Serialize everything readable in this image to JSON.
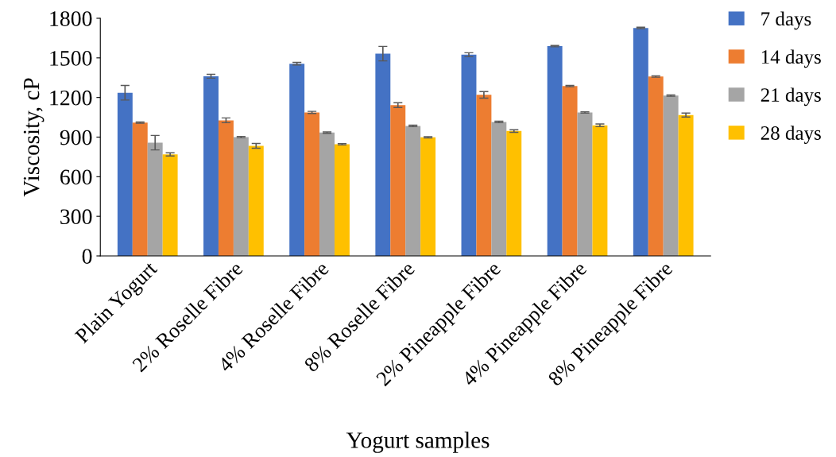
{
  "chart_data": {
    "type": "bar",
    "xlabel": "Yogurt samples",
    "ylabel": "Viscosity, cP",
    "categories": [
      "Plain Yogurt",
      "2% Roselle Fibre",
      "4% Roselle Fibre",
      "8% Roselle Fibre",
      "2% Pineapple Fibre",
      "4% Pineapple Fibre",
      "8% Pineapple Fibre"
    ],
    "series": [
      {
        "name": "7 days",
        "color": "#4472c4",
        "values": [
          1236,
          1361,
          1456,
          1532,
          1524,
          1589,
          1727
        ],
        "errors": [
          55,
          15,
          10,
          55,
          15,
          5,
          5
        ]
      },
      {
        "name": "14 days",
        "color": "#ed7d31",
        "values": [
          1010,
          1027,
          1087,
          1142,
          1220,
          1287,
          1359
        ],
        "errors": [
          5,
          18,
          8,
          18,
          25,
          5,
          5
        ]
      },
      {
        "name": "21 days",
        "color": "#a5a5a5",
        "values": [
          858,
          900,
          934,
          985,
          1015,
          1087,
          1214
        ],
        "errors": [
          55,
          5,
          5,
          5,
          5,
          5,
          5
        ]
      },
      {
        "name": "28 days",
        "color": "#ffc000",
        "values": [
          769,
          834,
          846,
          898,
          946,
          989,
          1067
        ],
        "errors": [
          12,
          18,
          5,
          5,
          10,
          10,
          15
        ]
      }
    ],
    "ylim": [
      0,
      1800
    ],
    "yticks": [
      0,
      300,
      600,
      900,
      1200,
      1500,
      1800
    ],
    "legend": "right",
    "grid": false
  }
}
